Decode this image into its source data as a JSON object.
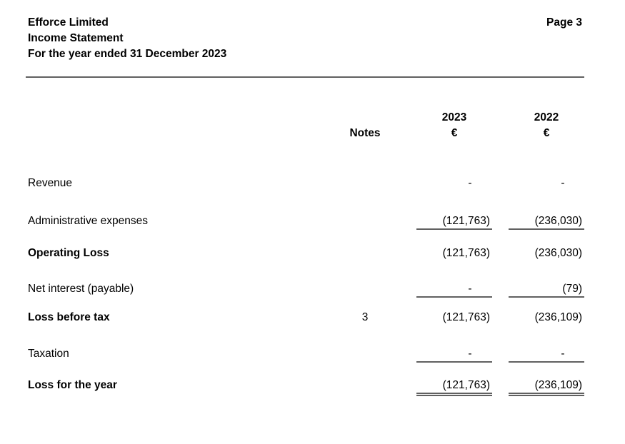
{
  "header": {
    "company": "Efforce Limited",
    "statement": "Income Statement",
    "period": "For the year ended 31 December 2023",
    "page": "Page 3"
  },
  "table": {
    "notes_header": "Notes",
    "years": [
      "2023",
      "2022"
    ],
    "currency": [
      "€",
      "€"
    ],
    "rows": [
      {
        "label": "Revenue",
        "values": [
          "-",
          "-"
        ]
      },
      {
        "label": "Administrative expenses",
        "values": [
          "(121,763)",
          "(236,030)"
        ],
        "rule": "single"
      },
      {
        "label": "Operating Loss",
        "values": [
          "(121,763)",
          "(236,030)"
        ],
        "bold": true
      },
      {
        "label": "Net interest (payable)",
        "values": [
          "-",
          "(79)"
        ],
        "rule": "single"
      },
      {
        "label": "Loss before tax",
        "notes": "3",
        "values": [
          "(121,763)",
          "(236,109)"
        ],
        "bold": true
      },
      {
        "label": "Taxation",
        "values": [
          "-",
          "-"
        ],
        "rule": "single"
      },
      {
        "label": "Loss for the year",
        "values": [
          "(121,763)",
          "(236,109)"
        ],
        "bold": true,
        "rule": "double"
      }
    ]
  }
}
